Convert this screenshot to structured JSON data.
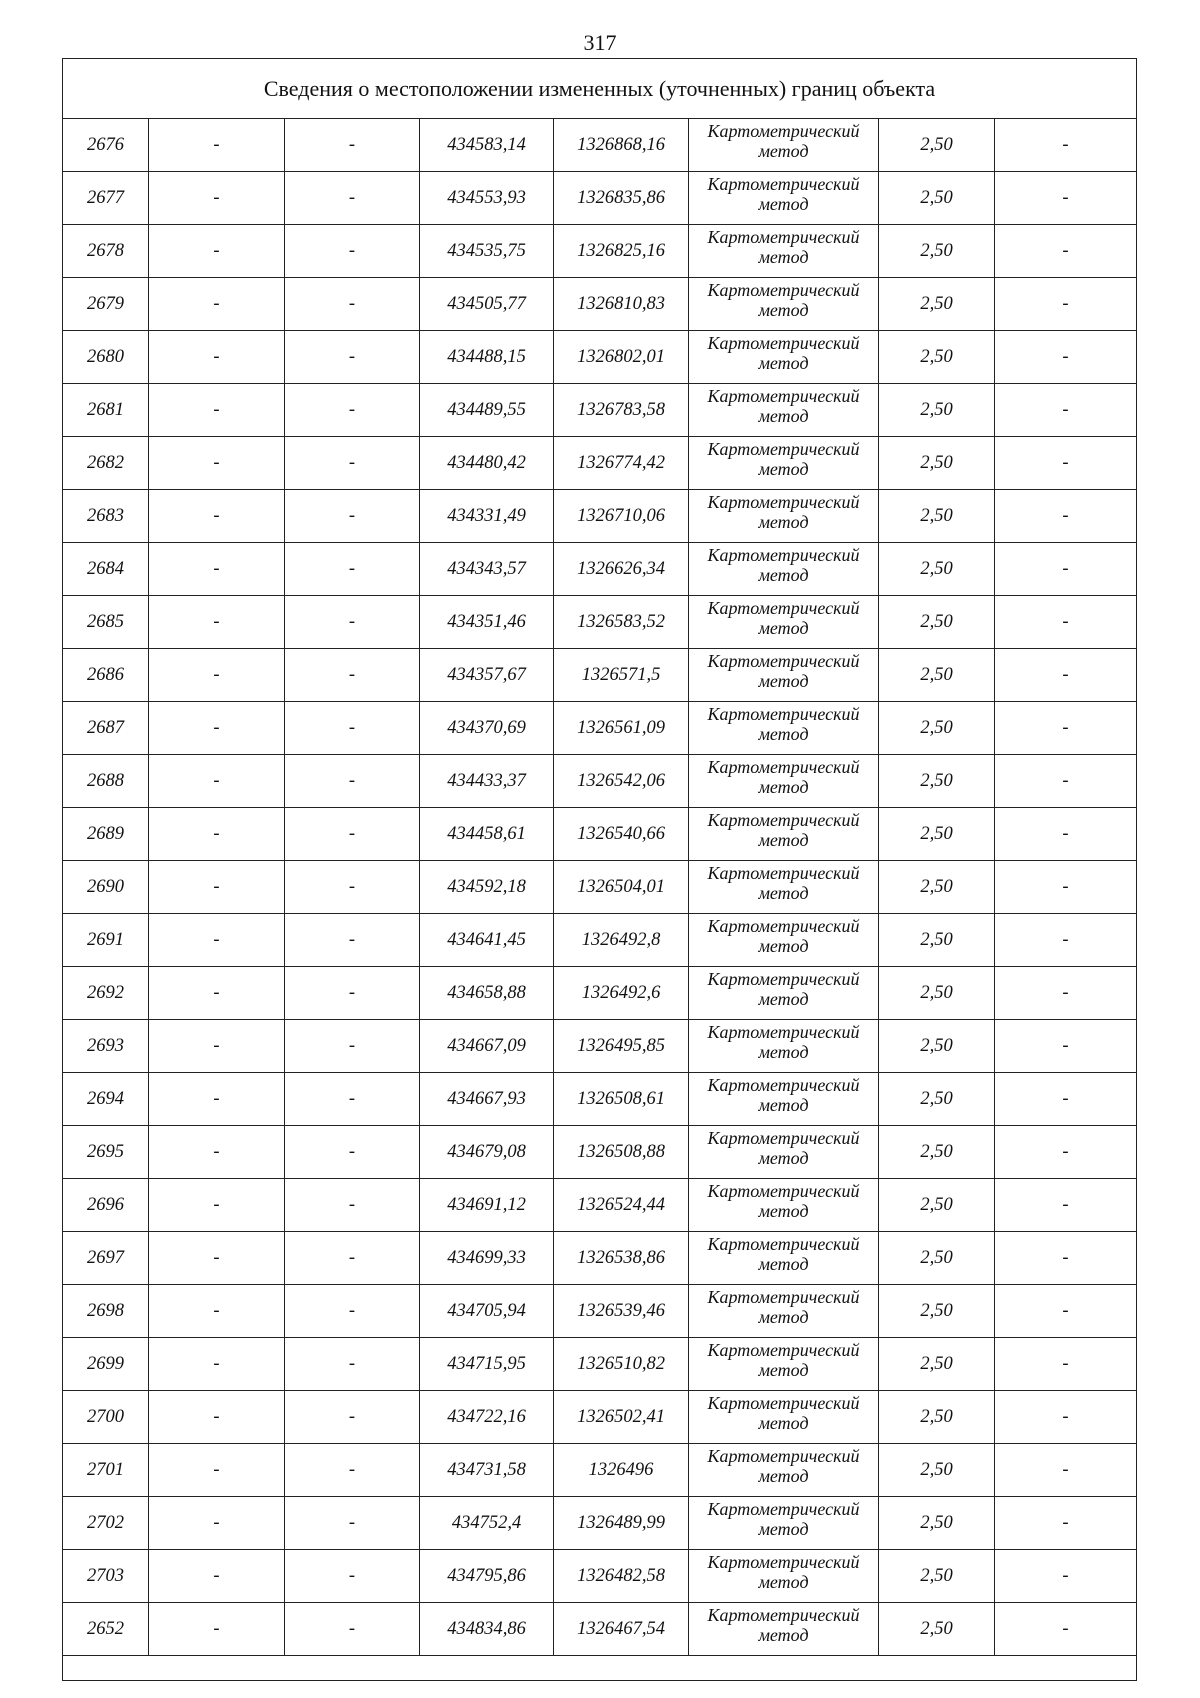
{
  "page_number": "317",
  "table": {
    "title": "Сведения о местоположении измененных (уточненных) границ объекта",
    "rows": [
      [
        "2676",
        "-",
        "-",
        "434583,14",
        "1326868,16",
        "Картометрический метод",
        "2,50",
        "-"
      ],
      [
        "2677",
        "-",
        "-",
        "434553,93",
        "1326835,86",
        "Картометрический метод",
        "2,50",
        "-"
      ],
      [
        "2678",
        "-",
        "-",
        "434535,75",
        "1326825,16",
        "Картометрический метод",
        "2,50",
        "-"
      ],
      [
        "2679",
        "-",
        "-",
        "434505,77",
        "1326810,83",
        "Картометрический метод",
        "2,50",
        "-"
      ],
      [
        "2680",
        "-",
        "-",
        "434488,15",
        "1326802,01",
        "Картометрический метод",
        "2,50",
        "-"
      ],
      [
        "2681",
        "-",
        "-",
        "434489,55",
        "1326783,58",
        "Картометрический метод",
        "2,50",
        "-"
      ],
      [
        "2682",
        "-",
        "-",
        "434480,42",
        "1326774,42",
        "Картометрический метод",
        "2,50",
        "-"
      ],
      [
        "2683",
        "-",
        "-",
        "434331,49",
        "1326710,06",
        "Картометрический метод",
        "2,50",
        "-"
      ],
      [
        "2684",
        "-",
        "-",
        "434343,57",
        "1326626,34",
        "Картометрический метод",
        "2,50",
        "-"
      ],
      [
        "2685",
        "-",
        "-",
        "434351,46",
        "1326583,52",
        "Картометрический метод",
        "2,50",
        "-"
      ],
      [
        "2686",
        "-",
        "-",
        "434357,67",
        "1326571,5",
        "Картометрический метод",
        "2,50",
        "-"
      ],
      [
        "2687",
        "-",
        "-",
        "434370,69",
        "1326561,09",
        "Картометрический метод",
        "2,50",
        "-"
      ],
      [
        "2688",
        "-",
        "-",
        "434433,37",
        "1326542,06",
        "Картометрический метод",
        "2,50",
        "-"
      ],
      [
        "2689",
        "-",
        "-",
        "434458,61",
        "1326540,66",
        "Картометрический метод",
        "2,50",
        "-"
      ],
      [
        "2690",
        "-",
        "-",
        "434592,18",
        "1326504,01",
        "Картометрический метод",
        "2,50",
        "-"
      ],
      [
        "2691",
        "-",
        "-",
        "434641,45",
        "1326492,8",
        "Картометрический метод",
        "2,50",
        "-"
      ],
      [
        "2692",
        "-",
        "-",
        "434658,88",
        "1326492,6",
        "Картометрический метод",
        "2,50",
        "-"
      ],
      [
        "2693",
        "-",
        "-",
        "434667,09",
        "1326495,85",
        "Картометрический метод",
        "2,50",
        "-"
      ],
      [
        "2694",
        "-",
        "-",
        "434667,93",
        "1326508,61",
        "Картометрический метод",
        "2,50",
        "-"
      ],
      [
        "2695",
        "-",
        "-",
        "434679,08",
        "1326508,88",
        "Картометрический метод",
        "2,50",
        "-"
      ],
      [
        "2696",
        "-",
        "-",
        "434691,12",
        "1326524,44",
        "Картометрический метод",
        "2,50",
        "-"
      ],
      [
        "2697",
        "-",
        "-",
        "434699,33",
        "1326538,86",
        "Картометрический метод",
        "2,50",
        "-"
      ],
      [
        "2698",
        "-",
        "-",
        "434705,94",
        "1326539,46",
        "Картометрический метод",
        "2,50",
        "-"
      ],
      [
        "2699",
        "-",
        "-",
        "434715,95",
        "1326510,82",
        "Картометрический метод",
        "2,50",
        "-"
      ],
      [
        "2700",
        "-",
        "-",
        "434722,16",
        "1326502,41",
        "Картометрический метод",
        "2,50",
        "-"
      ],
      [
        "2701",
        "-",
        "-",
        "434731,58",
        "1326496",
        "Картометрический метод",
        "2,50",
        "-"
      ],
      [
        "2702",
        "-",
        "-",
        "434752,4",
        "1326489,99",
        "Картометрический метод",
        "2,50",
        "-"
      ],
      [
        "2703",
        "-",
        "-",
        "434795,86",
        "1326482,58",
        "Картометрический метод",
        "2,50",
        "-"
      ],
      [
        "2652",
        "-",
        "-",
        "434834,86",
        "1326467,54",
        "Картометрический метод",
        "2,50",
        "-"
      ]
    ]
  }
}
